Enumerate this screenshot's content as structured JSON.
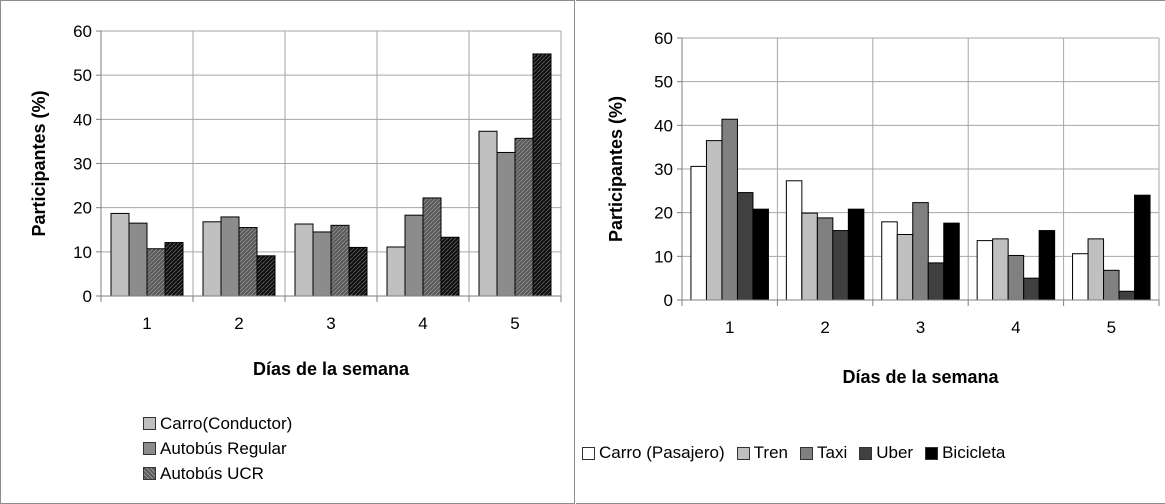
{
  "charts": [
    {
      "type": "bar",
      "categories": [
        "1",
        "2",
        "3",
        "4",
        "5"
      ],
      "xlabel": "Días de la semana",
      "ylabel": "Participantes (%)",
      "ylim": [
        0,
        60
      ],
      "yticks": [
        "0",
        "10",
        "20",
        "30",
        "40",
        "50",
        "60"
      ],
      "grid": true,
      "legend_position": "bottom-left",
      "series": [
        {
          "name": "Carro(Conductor)",
          "color": "#c0c0c0",
          "pattern": false,
          "values": [
            18.7,
            16.8,
            16.3,
            11.1,
            37.3
          ]
        },
        {
          "name": "Autobús Regular",
          "color": "#8c8c8c",
          "pattern": false,
          "values": [
            16.5,
            17.9,
            14.5,
            18.3,
            32.5
          ]
        },
        {
          "name": "Autobús UCR",
          "color": "#595959",
          "pattern": true,
          "values": [
            10.7,
            15.5,
            16.0,
            22.2,
            35.7
          ]
        },
        {
          "name": "",
          "color": "#0d0d0d",
          "pattern": true,
          "values": [
            12.1,
            9.1,
            11.0,
            13.3,
            54.8
          ]
        }
      ]
    },
    {
      "type": "bar",
      "categories": [
        "1",
        "2",
        "3",
        "4",
        "5"
      ],
      "xlabel": "Días de la semana",
      "ylabel": "Participantes (%)",
      "ylim": [
        0,
        60
      ],
      "yticks": [
        "0",
        "10",
        "20",
        "30",
        "40",
        "50",
        "60"
      ],
      "grid": true,
      "legend_position": "bottom",
      "series": [
        {
          "name": "Carro (Pasajero)",
          "color": "#ffffff",
          "pattern": false,
          "values": [
            30.6,
            27.3,
            17.9,
            13.6,
            10.6
          ]
        },
        {
          "name": "Tren",
          "color": "#c0c0c0",
          "pattern": false,
          "values": [
            36.5,
            19.9,
            15.0,
            14.0,
            14.0
          ]
        },
        {
          "name": "Taxi",
          "color": "#808080",
          "pattern": false,
          "values": [
            41.4,
            18.8,
            22.3,
            10.2,
            6.8
          ]
        },
        {
          "name": "Uber",
          "color": "#404040",
          "pattern": false,
          "values": [
            24.6,
            15.9,
            8.5,
            5.0,
            2.0
          ]
        },
        {
          "name": "Bicicleta",
          "color": "#000000",
          "pattern": false,
          "values": [
            20.8,
            20.8,
            17.6,
            15.9,
            24.0
          ]
        }
      ]
    }
  ]
}
